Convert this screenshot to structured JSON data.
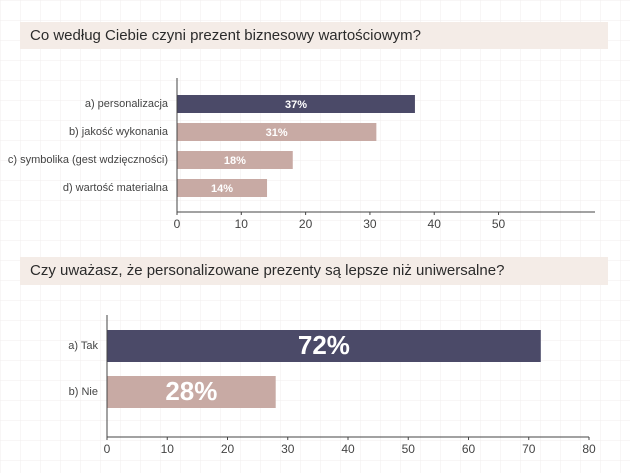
{
  "chart_data": [
    {
      "type": "bar",
      "orientation": "horizontal",
      "title": "Co według Ciebie czyni prezent biznesowy wartościowym?",
      "categories": [
        "a) personalizacja",
        "b) jakość wykonania",
        "c) symbolika (gest wdzięczności)",
        "d) wartość materialna"
      ],
      "values": [
        37,
        31,
        18,
        14
      ],
      "value_labels": [
        "37%",
        "31%",
        "18%",
        "14%"
      ],
      "colors": [
        "#4b4a68",
        "#c8aaa4",
        "#c8aaa4",
        "#c8aaa4"
      ],
      "xlim": [
        0,
        65
      ],
      "xticks": [
        0,
        10,
        20,
        30,
        40,
        50
      ]
    },
    {
      "type": "bar",
      "orientation": "horizontal",
      "title": "Czy uważasz, że personalizowane prezenty są lepsze niż uniwersalne?",
      "categories": [
        "a) Tak",
        "b) Nie"
      ],
      "values": [
        72,
        28
      ],
      "value_labels": [
        "72%",
        "28%"
      ],
      "colors": [
        "#4b4a68",
        "#c8aaa4"
      ],
      "xlim": [
        0,
        80
      ],
      "xticks": [
        0,
        10,
        20,
        30,
        40,
        50,
        60,
        70,
        80
      ]
    }
  ]
}
